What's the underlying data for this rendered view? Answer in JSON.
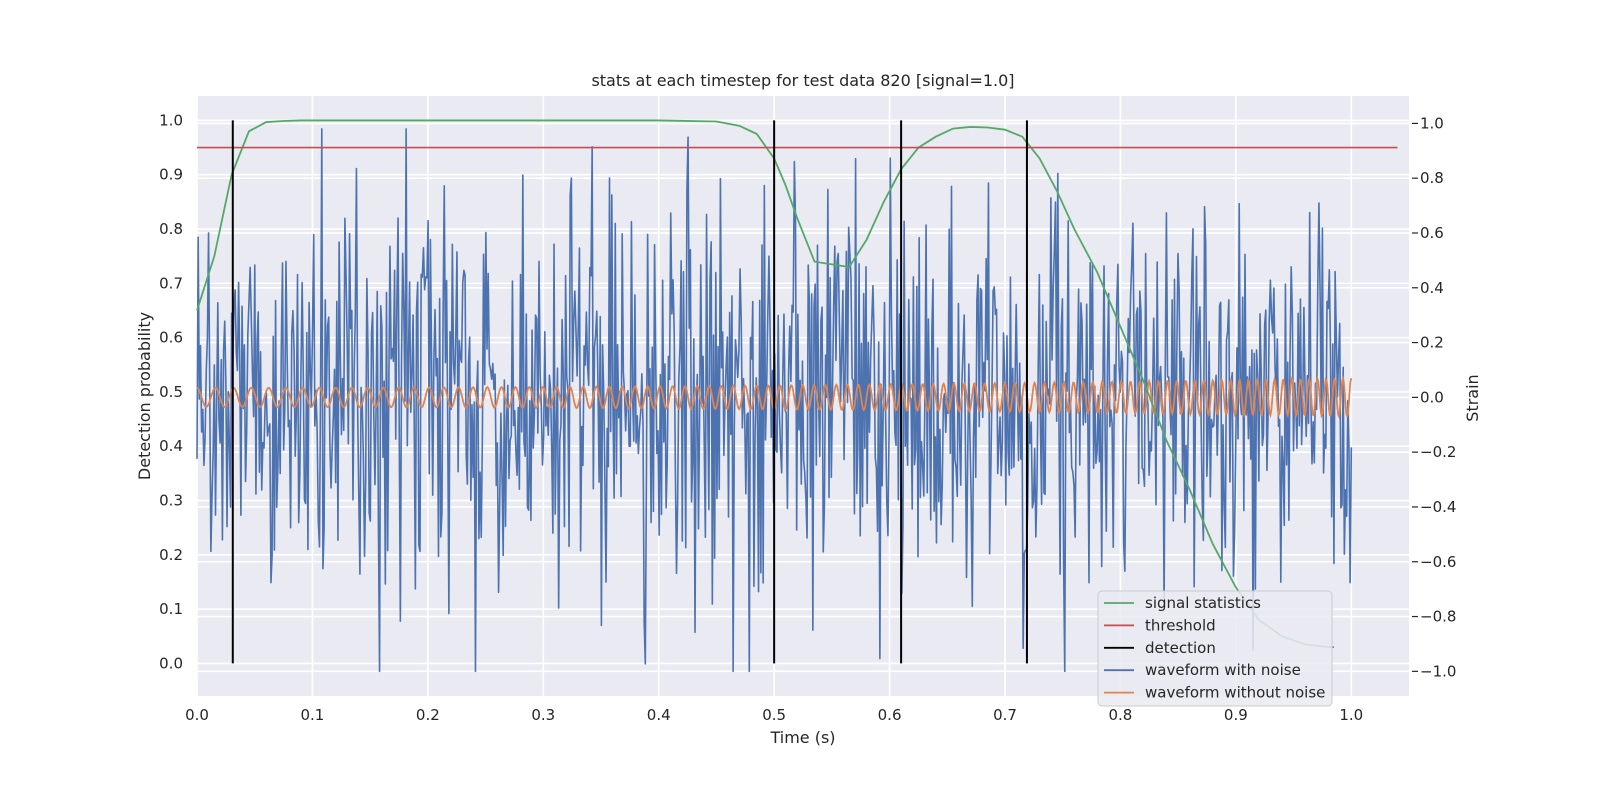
{
  "chart_data": {
    "type": "line",
    "title": "stats at each timestep for test data 820 [signal=1.0]",
    "xlabel": "Time (s)",
    "ylabel_left": "Detection probability",
    "ylabel_right": "Strain",
    "xlim": [
      0.0,
      1.05
    ],
    "ylim_left": [
      -0.06,
      1.045
    ],
    "ylim_right": [
      -1.09,
      1.1
    ],
    "xticks": [
      0.0,
      0.1,
      0.2,
      0.3,
      0.4,
      0.5,
      0.6,
      0.7,
      0.8,
      0.9,
      1.0
    ],
    "xtick_labels": [
      "0.0",
      "0.1",
      "0.2",
      "0.3",
      "0.4",
      "0.5",
      "0.6",
      "0.7",
      "0.8",
      "0.9",
      "1.0"
    ],
    "yticks_left": [
      0.0,
      0.1,
      0.2,
      0.3,
      0.4,
      0.5,
      0.6,
      0.7,
      0.8,
      0.9,
      1.0
    ],
    "ytick_labels_left": [
      "0.0",
      "0.1",
      "0.2",
      "0.3",
      "0.4",
      "0.5",
      "0.6",
      "0.7",
      "0.8",
      "0.9",
      "1.0"
    ],
    "yticks_right": [
      -1.0,
      -0.8,
      -0.6,
      -0.4,
      -0.2,
      0.0,
      0.2,
      0.4,
      0.6,
      0.8,
      1.0
    ],
    "ytick_labels_right": [
      "−1.0",
      "−0.8",
      "−0.6",
      "−0.4",
      "−0.2",
      "0.0",
      "0.2",
      "0.4",
      "0.6",
      "0.8",
      "1.0"
    ],
    "grid": true,
    "legend_position": "lower-right",
    "colors": {
      "signal_statistics": "#55a868",
      "threshold": "#c44e52",
      "detection": "#000000",
      "waveform_with_noise": "#4c72b0",
      "waveform_without_noise": "#dd8452",
      "background": "#eaeaf2",
      "grid": "#ffffff"
    },
    "series": [
      {
        "name": "signal statistics",
        "axis": "left",
        "x": [
          0.0,
          0.015,
          0.03,
          0.045,
          0.06,
          0.075,
          0.09,
          0.1,
          0.2,
          0.3,
          0.4,
          0.45,
          0.47,
          0.485,
          0.5,
          0.51,
          0.52,
          0.535,
          0.55,
          0.565,
          0.58,
          0.595,
          0.61,
          0.625,
          0.64,
          0.655,
          0.67,
          0.685,
          0.7,
          0.715,
          0.73,
          0.745,
          0.76,
          0.78,
          0.8,
          0.82,
          0.84,
          0.86,
          0.88,
          0.9,
          0.92,
          0.94,
          0.96,
          0.98,
          0.985
        ],
        "y": [
          0.65,
          0.75,
          0.9,
          0.98,
          0.997,
          0.999,
          1.0,
          1.0,
          1.0,
          1.0,
          1.0,
          0.998,
          0.99,
          0.975,
          0.93,
          0.88,
          0.82,
          0.74,
          0.735,
          0.73,
          0.78,
          0.85,
          0.91,
          0.95,
          0.97,
          0.985,
          0.988,
          0.987,
          0.983,
          0.97,
          0.93,
          0.87,
          0.8,
          0.72,
          0.62,
          0.52,
          0.41,
          0.32,
          0.22,
          0.14,
          0.08,
          0.05,
          0.035,
          0.03,
          0.03
        ]
      },
      {
        "name": "threshold",
        "axis": "left",
        "x": [
          0.0,
          1.04
        ],
        "y": [
          0.95,
          0.95
        ]
      },
      {
        "name": "detection",
        "axis": "left",
        "x": [
          0.031,
          0.5,
          0.61,
          0.719
        ],
        "y_range": [
          0.0,
          1.0
        ]
      },
      {
        "name": "waveform with noise",
        "axis": "right",
        "x_range": [
          0.0,
          1.0
        ],
        "samples": 1000,
        "amplitude_range": [
          -1.0,
          0.98
        ]
      },
      {
        "name": "waveform without noise",
        "axis": "right",
        "x_range": [
          0.0,
          1.0
        ],
        "amplitude_start": 0.035,
        "amplitude_end": 0.07,
        "cycles": 100
      }
    ]
  }
}
